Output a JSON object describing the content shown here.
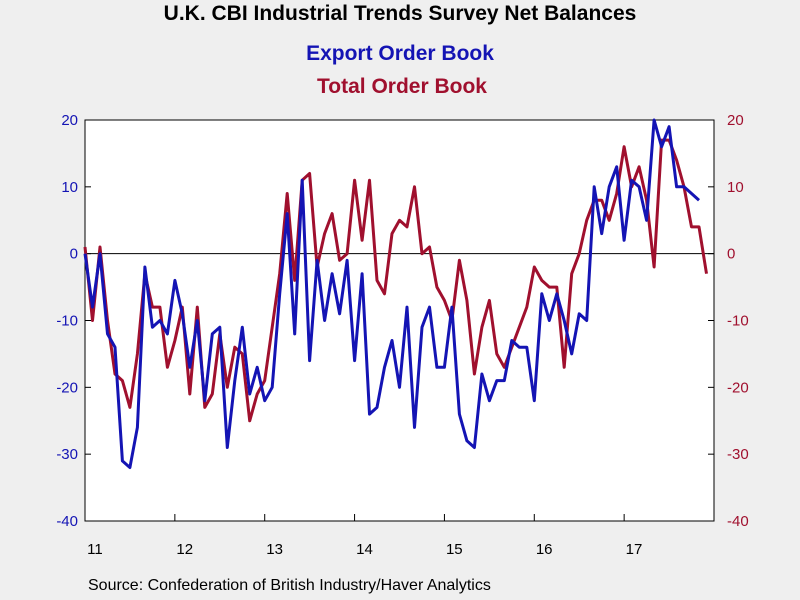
{
  "chart_data": {
    "type": "line",
    "title": "U.K. CBI Industrial Trends Survey Net Balances",
    "source": "Source:  Confederation of British Industry/Haver Analytics",
    "x_tick_labels": [
      "11",
      "12",
      "13",
      "14",
      "15",
      "16",
      "17"
    ],
    "x_range": [
      2011.0,
      2018.0
    ],
    "left_ylim": [
      -40,
      20
    ],
    "right_ylim": [
      -40,
      20
    ],
    "left_ticks": [
      -40,
      -30,
      -20,
      -10,
      0,
      10,
      20
    ],
    "right_ticks": [
      -40,
      -30,
      -20,
      -10,
      0,
      10,
      20
    ],
    "grid": false,
    "legend_placement": "top-center",
    "series": [
      {
        "name": "Export Order Book",
        "color": "#1414b4",
        "axis": "left",
        "start": 2011.0,
        "step_months": 1,
        "values": [
          0,
          -8,
          0,
          -12,
          -14,
          -31,
          -32,
          -26,
          -2,
          -11,
          -10,
          -12,
          -4,
          -9,
          -17,
          -10,
          -22,
          -12,
          -11,
          -29,
          -19,
          -11,
          -21,
          -17,
          -22,
          -20,
          -6,
          6,
          -12,
          11,
          -16,
          -1,
          -10,
          -3,
          -9,
          -1,
          -16,
          -3,
          -24,
          -23,
          -17,
          -13,
          -20,
          -8,
          -26,
          -11,
          -8,
          -17,
          -17,
          -8,
          -24,
          -28,
          -29,
          -18,
          -22,
          -19,
          -19,
          -13,
          -14,
          -14,
          -22,
          -6,
          -10,
          -6,
          -10,
          -15,
          -9,
          -10,
          10,
          3,
          10,
          13,
          2,
          11,
          10,
          5,
          20,
          16,
          19,
          10,
          10,
          9,
          8
        ]
      },
      {
        "name": "Total Order Book",
        "color": "#a0102e",
        "axis": "right",
        "start": 2011.0,
        "step_months": 1,
        "values": [
          1,
          -10,
          1,
          -10,
          -18,
          -19,
          -23,
          -15,
          -3,
          -8,
          -8,
          -17,
          -13,
          -8,
          -21,
          -8,
          -23,
          -21,
          -12,
          -20,
          -14,
          -15,
          -25,
          -21,
          -19,
          -11,
          -3,
          9,
          -4,
          11,
          12,
          -2,
          3,
          6,
          -1,
          0,
          11,
          2,
          11,
          -4,
          -6,
          3,
          5,
          4,
          10,
          0,
          1,
          -5,
          -7,
          -10,
          -1,
          -7,
          -18,
          -11,
          -7,
          -15,
          -17,
          -14,
          -11,
          -8,
          -2,
          -4,
          -5,
          -5,
          -17,
          -3,
          0,
          5,
          8,
          8,
          5,
          9,
          16,
          10,
          13,
          8,
          -2,
          17,
          17,
          14,
          10,
          4,
          4,
          -3
        ]
      }
    ]
  }
}
